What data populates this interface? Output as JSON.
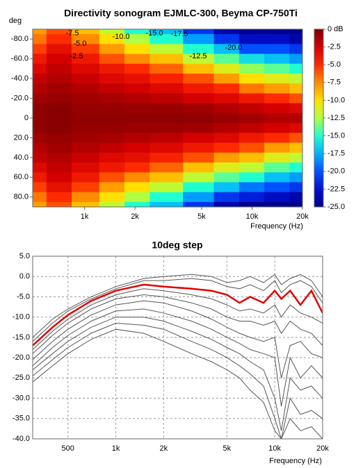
{
  "chart_data": [
    {
      "type": "heatmap",
      "title": "Directivity sonogram EJMLC-300, Beyma CP-750Ti",
      "y_label": "deg",
      "x_label": "Frequency (Hz)",
      "log_x": true,
      "xlim": [
        490,
        20000
      ],
      "ylim": [
        -90,
        90
      ],
      "xticks": [
        {
          "value": 1000,
          "label": "1k"
        },
        {
          "value": 2000,
          "label": "2k"
        },
        {
          "value": 5000,
          "label": "5k"
        },
        {
          "value": 10000,
          "label": "10k"
        },
        {
          "value": 20000,
          "label": "20k"
        }
      ],
      "yticks": [
        {
          "value": -80,
          "label": "-80.0"
        },
        {
          "value": -60,
          "label": "-60.0"
        },
        {
          "value": -40,
          "label": "-40.0"
        },
        {
          "value": -20,
          "label": "-20.0"
        },
        {
          "value": 0,
          "label": "0"
        },
        {
          "value": 20,
          "label": "20.0"
        },
        {
          "value": 40,
          "label": "40.0"
        },
        {
          "value": 60,
          "label": "60.0"
        },
        {
          "value": 80,
          "label": "80.0"
        }
      ],
      "x": [
        500,
        700,
        1000,
        1500,
        2000,
        3000,
        5000,
        7000,
        10000,
        14000,
        20000
      ],
      "y": [
        -90,
        -80,
        -70,
        -60,
        -50,
        -40,
        -30,
        -20,
        -10,
        0,
        10,
        20,
        30,
        40,
        50,
        60,
        70,
        80,
        90
      ],
      "z": [
        [
          -8,
          -6,
          -9,
          -12,
          -15,
          -17,
          -21,
          -24,
          -25,
          -25,
          -25
        ],
        [
          -7,
          -5,
          -7.5,
          -10,
          -12.5,
          -15,
          -18,
          -21,
          -23,
          -23,
          -24
        ],
        [
          -5.5,
          -3.5,
          -5.5,
          -8,
          -10,
          -12,
          -15,
          -17,
          -20,
          -20,
          -21
        ],
        [
          -4,
          -2.5,
          -4,
          -6,
          -7.5,
          -9,
          -12,
          -14,
          -16,
          -17,
          -18
        ],
        [
          -3,
          -2,
          -3,
          -4,
          -5,
          -6.5,
          -9,
          -11,
          -13,
          -14,
          -15
        ],
        [
          -2,
          -1.5,
          -2.2,
          -3,
          -3.5,
          -4.5,
          -6,
          -8,
          -10,
          -11,
          -12
        ],
        [
          -1.5,
          -1,
          -1.5,
          -2,
          -2.5,
          -3,
          -4,
          -5,
          -7,
          -8,
          -9
        ],
        [
          -1,
          -0.7,
          -1,
          -1.2,
          -1.5,
          -1.8,
          -2.5,
          -3,
          -4,
          -5,
          -6
        ],
        [
          -0.5,
          -0.3,
          -0.7,
          -0.7,
          -0.8,
          -0.8,
          -1,
          -1.5,
          -2,
          -2.5,
          -3
        ],
        [
          -0.5,
          -0.3,
          -0.5,
          -0.5,
          -0.5,
          -0.5,
          -0.5,
          -0.8,
          -1,
          -1.5,
          -1.5
        ],
        [
          -0.5,
          -0.3,
          -0.7,
          -0.7,
          -0.8,
          -0.8,
          -1,
          -1.5,
          -2,
          -2.5,
          -3
        ],
        [
          -1,
          -0.7,
          -1,
          -1.2,
          -1.5,
          -1.8,
          -2.5,
          -3,
          -4,
          -5,
          -6
        ],
        [
          -1.5,
          -1,
          -1.5,
          -2,
          -2.5,
          -3,
          -4,
          -5,
          -6,
          -8,
          -9
        ],
        [
          -2,
          -1.5,
          -2.2,
          -3,
          -3.5,
          -4.5,
          -6,
          -8,
          -9,
          -11,
          -12
        ],
        [
          -3,
          -2,
          -3,
          -4,
          -5,
          -6.5,
          -9,
          -11,
          -12,
          -14,
          -15
        ],
        [
          -4,
          -2.5,
          -4,
          -6,
          -7.5,
          -9,
          -12,
          -14,
          -15,
          -17,
          -18
        ],
        [
          -5.5,
          -3.5,
          -5.5,
          -8,
          -10,
          -12,
          -15,
          -17,
          -19,
          -20,
          -21
        ],
        [
          -7,
          -5,
          -7.5,
          -10,
          -12.5,
          -15,
          -18,
          -21,
          -22,
          -23,
          -24
        ],
        [
          -8,
          -6,
          -9,
          -12,
          -15,
          -17,
          -21,
          -24,
          -25,
          -25,
          -25
        ]
      ],
      "colorbar": {
        "lim": [
          0,
          -25
        ],
        "ticks": [
          {
            "value": 0,
            "label": "0 dB"
          },
          -2.5,
          {
            "value": -5,
            "label": "-5.0"
          },
          -7.5,
          {
            "value": -10,
            "label": "-10.0"
          },
          -12.5,
          {
            "value": -15,
            "label": "-15.0"
          },
          -17.5,
          {
            "value": -20,
            "label": "-20.0"
          },
          -22.5,
          {
            "value": -25,
            "label": "-25.0"
          }
        ],
        "colors": [
          "#7f0000",
          "#d40000",
          "#ff2a00",
          "#ff8c00",
          "#ffe000",
          "#b0ff40",
          "#20ffd0",
          "#00b0ff",
          "#0050ff",
          "#0010d0",
          "#000090"
        ]
      },
      "annotations": [
        "-7.5",
        "-10.0",
        "-15.0",
        "-17.5",
        "-5.0",
        "-2.5",
        "-12.5",
        "-20.0"
      ]
    },
    {
      "type": "line",
      "title": "10deg step",
      "x_label": "Frequency (Hz)",
      "log_x": true,
      "grid": true,
      "xlim": [
        300,
        20000
      ],
      "ylim": [
        -40,
        5
      ],
      "xticks": [
        500,
        {
          "value": 1000,
          "label": "1k"
        },
        {
          "value": 2000,
          "label": "2k"
        },
        {
          "value": 5000,
          "label": "5k"
        },
        {
          "value": 10000,
          "label": "10k"
        },
        {
          "value": 20000,
          "label": "20k"
        }
      ],
      "yticks": [
        {
          "value": 5,
          "label": "5.0"
        },
        {
          "value": 0,
          "label": "0.0"
        },
        {
          "value": -5,
          "label": "-5.0"
        },
        {
          "value": -10,
          "label": "-10.0"
        },
        {
          "value": -15,
          "label": "-15.0"
        },
        {
          "value": -20,
          "label": "-20.0"
        },
        {
          "value": -25,
          "label": "-25.0"
        },
        {
          "value": -30,
          "label": "-30.0"
        },
        {
          "value": -35,
          "label": "-35.0"
        },
        {
          "value": -40,
          "label": "-40.0"
        }
      ],
      "x": [
        300,
        400,
        500,
        700,
        1000,
        1500,
        2000,
        3000,
        4000,
        5000,
        6000,
        7000,
        8500,
        10000,
        11000,
        12500,
        14500,
        17000,
        20000
      ],
      "series": [
        {
          "color": "#555555",
          "values": [
            -15,
            -10.5,
            -8,
            -5,
            -2.5,
            -0.5,
            0,
            0.5,
            0,
            -1.5,
            -1,
            0,
            -1.5,
            0.5,
            -2,
            -0.5,
            0.5,
            -1,
            -5
          ]
        },
        {
          "color": "#555555",
          "values": [
            -16,
            -11.5,
            -8.5,
            -5.5,
            -3,
            -1,
            -1,
            -0.5,
            -1,
            -2.5,
            -3,
            -2,
            -3.5,
            -1,
            -4,
            -2,
            -1,
            -2.5,
            -6.5
          ]
        },
        {
          "color": "#e00000",
          "values": [
            -17,
            -12.5,
            -9.5,
            -6,
            -3.5,
            -2,
            -2.5,
            -3,
            -3.5,
            -4.5,
            -6.5,
            -5,
            -6.5,
            -3.5,
            -5.5,
            -3.5,
            -7,
            -3.5,
            -9
          ]
        },
        {
          "color": "#555555",
          "values": [
            -18,
            -13.5,
            -10.5,
            -7,
            -4.5,
            -3,
            -3.5,
            -4.5,
            -5.5,
            -7,
            -8.5,
            -8,
            -9,
            -7,
            -10,
            -7,
            -9,
            -10,
            -11.5
          ]
        },
        {
          "color": "#555555",
          "values": [
            -19,
            -14.5,
            -11.5,
            -8,
            -5.5,
            -4.5,
            -5,
            -6.5,
            -8,
            -10,
            -11,
            -11,
            -12,
            -11,
            -14,
            -11,
            -13,
            -14,
            -17
          ]
        },
        {
          "color": "#555555",
          "values": [
            -20.5,
            -16,
            -13,
            -9.5,
            -7,
            -6,
            -6.5,
            -8.5,
            -10.5,
            -12.5,
            -14,
            -15,
            -16,
            -15,
            -25,
            -17,
            -16,
            -19,
            -20
          ]
        },
        {
          "color": "#555555",
          "values": [
            -22,
            -17.5,
            -14.5,
            -11,
            -8.5,
            -8,
            -9,
            -11,
            -13,
            -15,
            -16.5,
            -18,
            -19,
            -20,
            -32,
            -20,
            -25,
            -22,
            -25
          ]
        },
        {
          "color": "#555555",
          "values": [
            -23,
            -19,
            -16,
            -12.5,
            -10,
            -10,
            -11,
            -13.5,
            -15.5,
            -17.5,
            -19,
            -21,
            -23,
            -30,
            -38,
            -25,
            -28,
            -27,
            -30
          ]
        },
        {
          "color": "#555555",
          "values": [
            -24.5,
            -20.5,
            -17.5,
            -14,
            -11.5,
            -12,
            -13,
            -16,
            -18,
            -20,
            -22,
            -24,
            -27,
            -35,
            -40,
            -30,
            -34,
            -33,
            -35
          ]
        },
        {
          "color": "#555555",
          "values": [
            -26,
            -22,
            -19,
            -15.5,
            -13,
            -14,
            -16,
            -19,
            -21,
            -23,
            -25,
            -28,
            -31,
            -38,
            -40,
            -35,
            -38,
            -37,
            -40
          ]
        }
      ]
    }
  ]
}
